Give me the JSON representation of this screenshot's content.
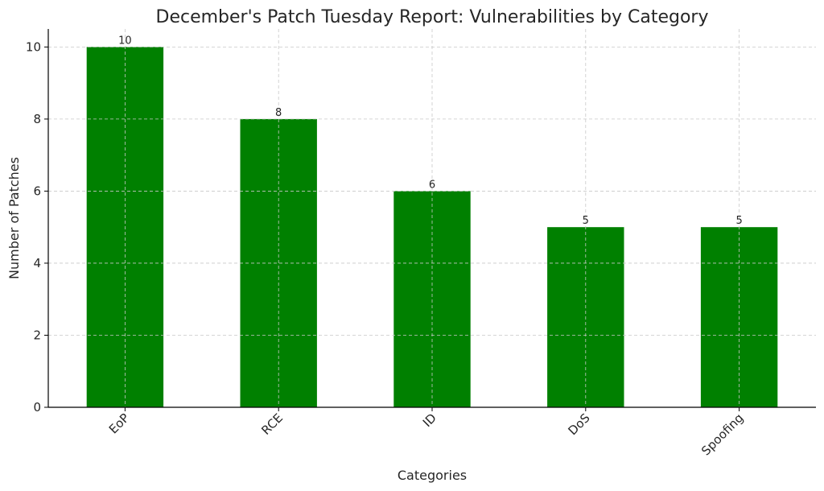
{
  "chart_data": {
    "type": "bar",
    "title": "December's Patch Tuesday Report: Vulnerabilities by Category",
    "xlabel": "Categories",
    "ylabel": "Number of Patches",
    "categories": [
      "EoP",
      "RCE",
      "ID",
      "DoS",
      "Spoofing"
    ],
    "values": [
      10,
      8,
      6,
      5,
      5
    ],
    "ylim": [
      0,
      10.5
    ],
    "yticks": [
      0,
      2,
      4,
      6,
      8,
      10
    ],
    "grid": true,
    "bar_color": "#008000",
    "x_tick_rotation": "45deg"
  }
}
